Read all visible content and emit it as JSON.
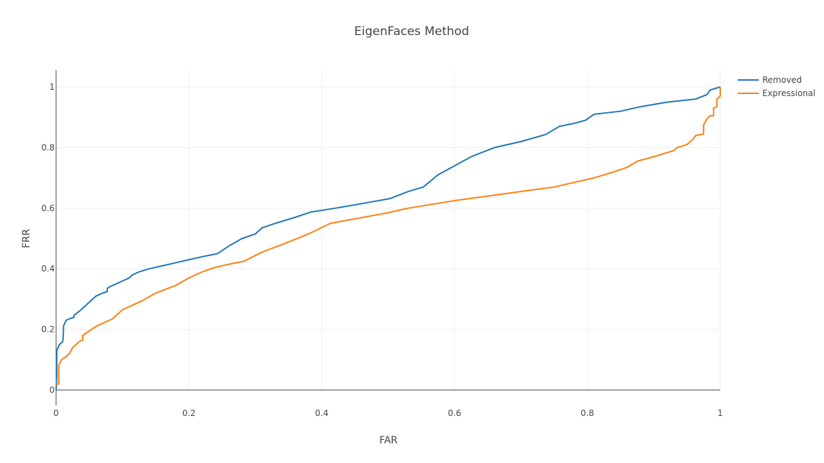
{
  "chart_data": {
    "type": "line",
    "title": "EigenFaces Method",
    "xlabel": "FAR",
    "ylabel": "FRR",
    "xlim": [
      0,
      1
    ],
    "ylim": [
      0,
      1
    ],
    "xticks": [
      0,
      0.2,
      0.4,
      0.6,
      0.8,
      1
    ],
    "yticks": [
      0,
      0.2,
      0.4,
      0.6,
      0.8,
      1
    ],
    "xtick_labels": [
      "0",
      "0.2",
      "0.4",
      "0.6",
      "0.8",
      "1"
    ],
    "ytick_labels": [
      "0",
      "0.2",
      "0.4",
      "0.6",
      "0.8",
      "1"
    ],
    "grid": true,
    "legend_position": "top-right",
    "series": [
      {
        "name": "Removed",
        "color": "#1f77b4",
        "x": [
          0,
          0.001,
          0.001,
          0.005,
          0.01,
          0.011,
          0.011,
          0.013,
          0.015,
          0.02,
          0.027,
          0.027,
          0.035,
          0.04,
          0.045,
          0.05,
          0.055,
          0.06,
          0.065,
          0.07,
          0.077,
          0.077,
          0.08,
          0.09,
          0.1,
          0.11,
          0.115,
          0.125,
          0.14,
          0.16,
          0.18,
          0.2,
          0.22,
          0.243,
          0.26,
          0.28,
          0.3,
          0.31,
          0.33,
          0.36,
          0.383,
          0.42,
          0.46,
          0.503,
          0.53,
          0.553,
          0.575,
          0.6,
          0.625,
          0.66,
          0.7,
          0.737,
          0.758,
          0.78,
          0.797,
          0.81,
          0.85,
          0.88,
          0.92,
          0.963,
          0.98,
          0.985,
          1
        ],
        "y": [
          0,
          0.05,
          0.13,
          0.15,
          0.16,
          0.19,
          0.21,
          0.22,
          0.23,
          0.235,
          0.24,
          0.247,
          0.26,
          0.27,
          0.28,
          0.29,
          0.3,
          0.31,
          0.315,
          0.32,
          0.325,
          0.335,
          0.34,
          0.35,
          0.36,
          0.37,
          0.38,
          0.39,
          0.4,
          0.41,
          0.42,
          0.43,
          0.44,
          0.45,
          0.475,
          0.5,
          0.515,
          0.535,
          0.55,
          0.57,
          0.587,
          0.6,
          0.615,
          0.632,
          0.655,
          0.67,
          0.71,
          0.74,
          0.77,
          0.8,
          0.82,
          0.843,
          0.87,
          0.88,
          0.89,
          0.91,
          0.92,
          0.935,
          0.95,
          0.96,
          0.975,
          0.99,
          1
        ]
      },
      {
        "name": "Expressional",
        "color": "#ff7f0e",
        "x": [
          0,
          0.004,
          0.004,
          0.008,
          0.015,
          0.02,
          0.025,
          0.03,
          0.035,
          0.04,
          0.04,
          0.05,
          0.06,
          0.07,
          0.085,
          0.1,
          0.115,
          0.13,
          0.15,
          0.18,
          0.2,
          0.22,
          0.24,
          0.26,
          0.283,
          0.31,
          0.34,
          0.38,
          0.413,
          0.45,
          0.5,
          0.53,
          0.6,
          0.65,
          0.7,
          0.75,
          0.78,
          0.81,
          0.84,
          0.86,
          0.875,
          0.9,
          0.93,
          0.935,
          0.95,
          0.96,
          0.963,
          0.975,
          0.975,
          0.98,
          0.985,
          0.99,
          0.99,
          0.995,
          0.995,
          1,
          1
        ],
        "y": [
          0.02,
          0.02,
          0.08,
          0.1,
          0.11,
          0.12,
          0.14,
          0.15,
          0.16,
          0.165,
          0.18,
          0.195,
          0.21,
          0.22,
          0.235,
          0.265,
          0.28,
          0.295,
          0.32,
          0.345,
          0.37,
          0.39,
          0.405,
          0.415,
          0.425,
          0.455,
          0.48,
          0.515,
          0.55,
          0.565,
          0.585,
          0.6,
          0.625,
          0.64,
          0.655,
          0.67,
          0.685,
          0.7,
          0.72,
          0.735,
          0.755,
          0.77,
          0.79,
          0.8,
          0.81,
          0.83,
          0.84,
          0.845,
          0.875,
          0.895,
          0.905,
          0.905,
          0.93,
          0.935,
          0.96,
          0.97,
          1
        ]
      }
    ]
  }
}
